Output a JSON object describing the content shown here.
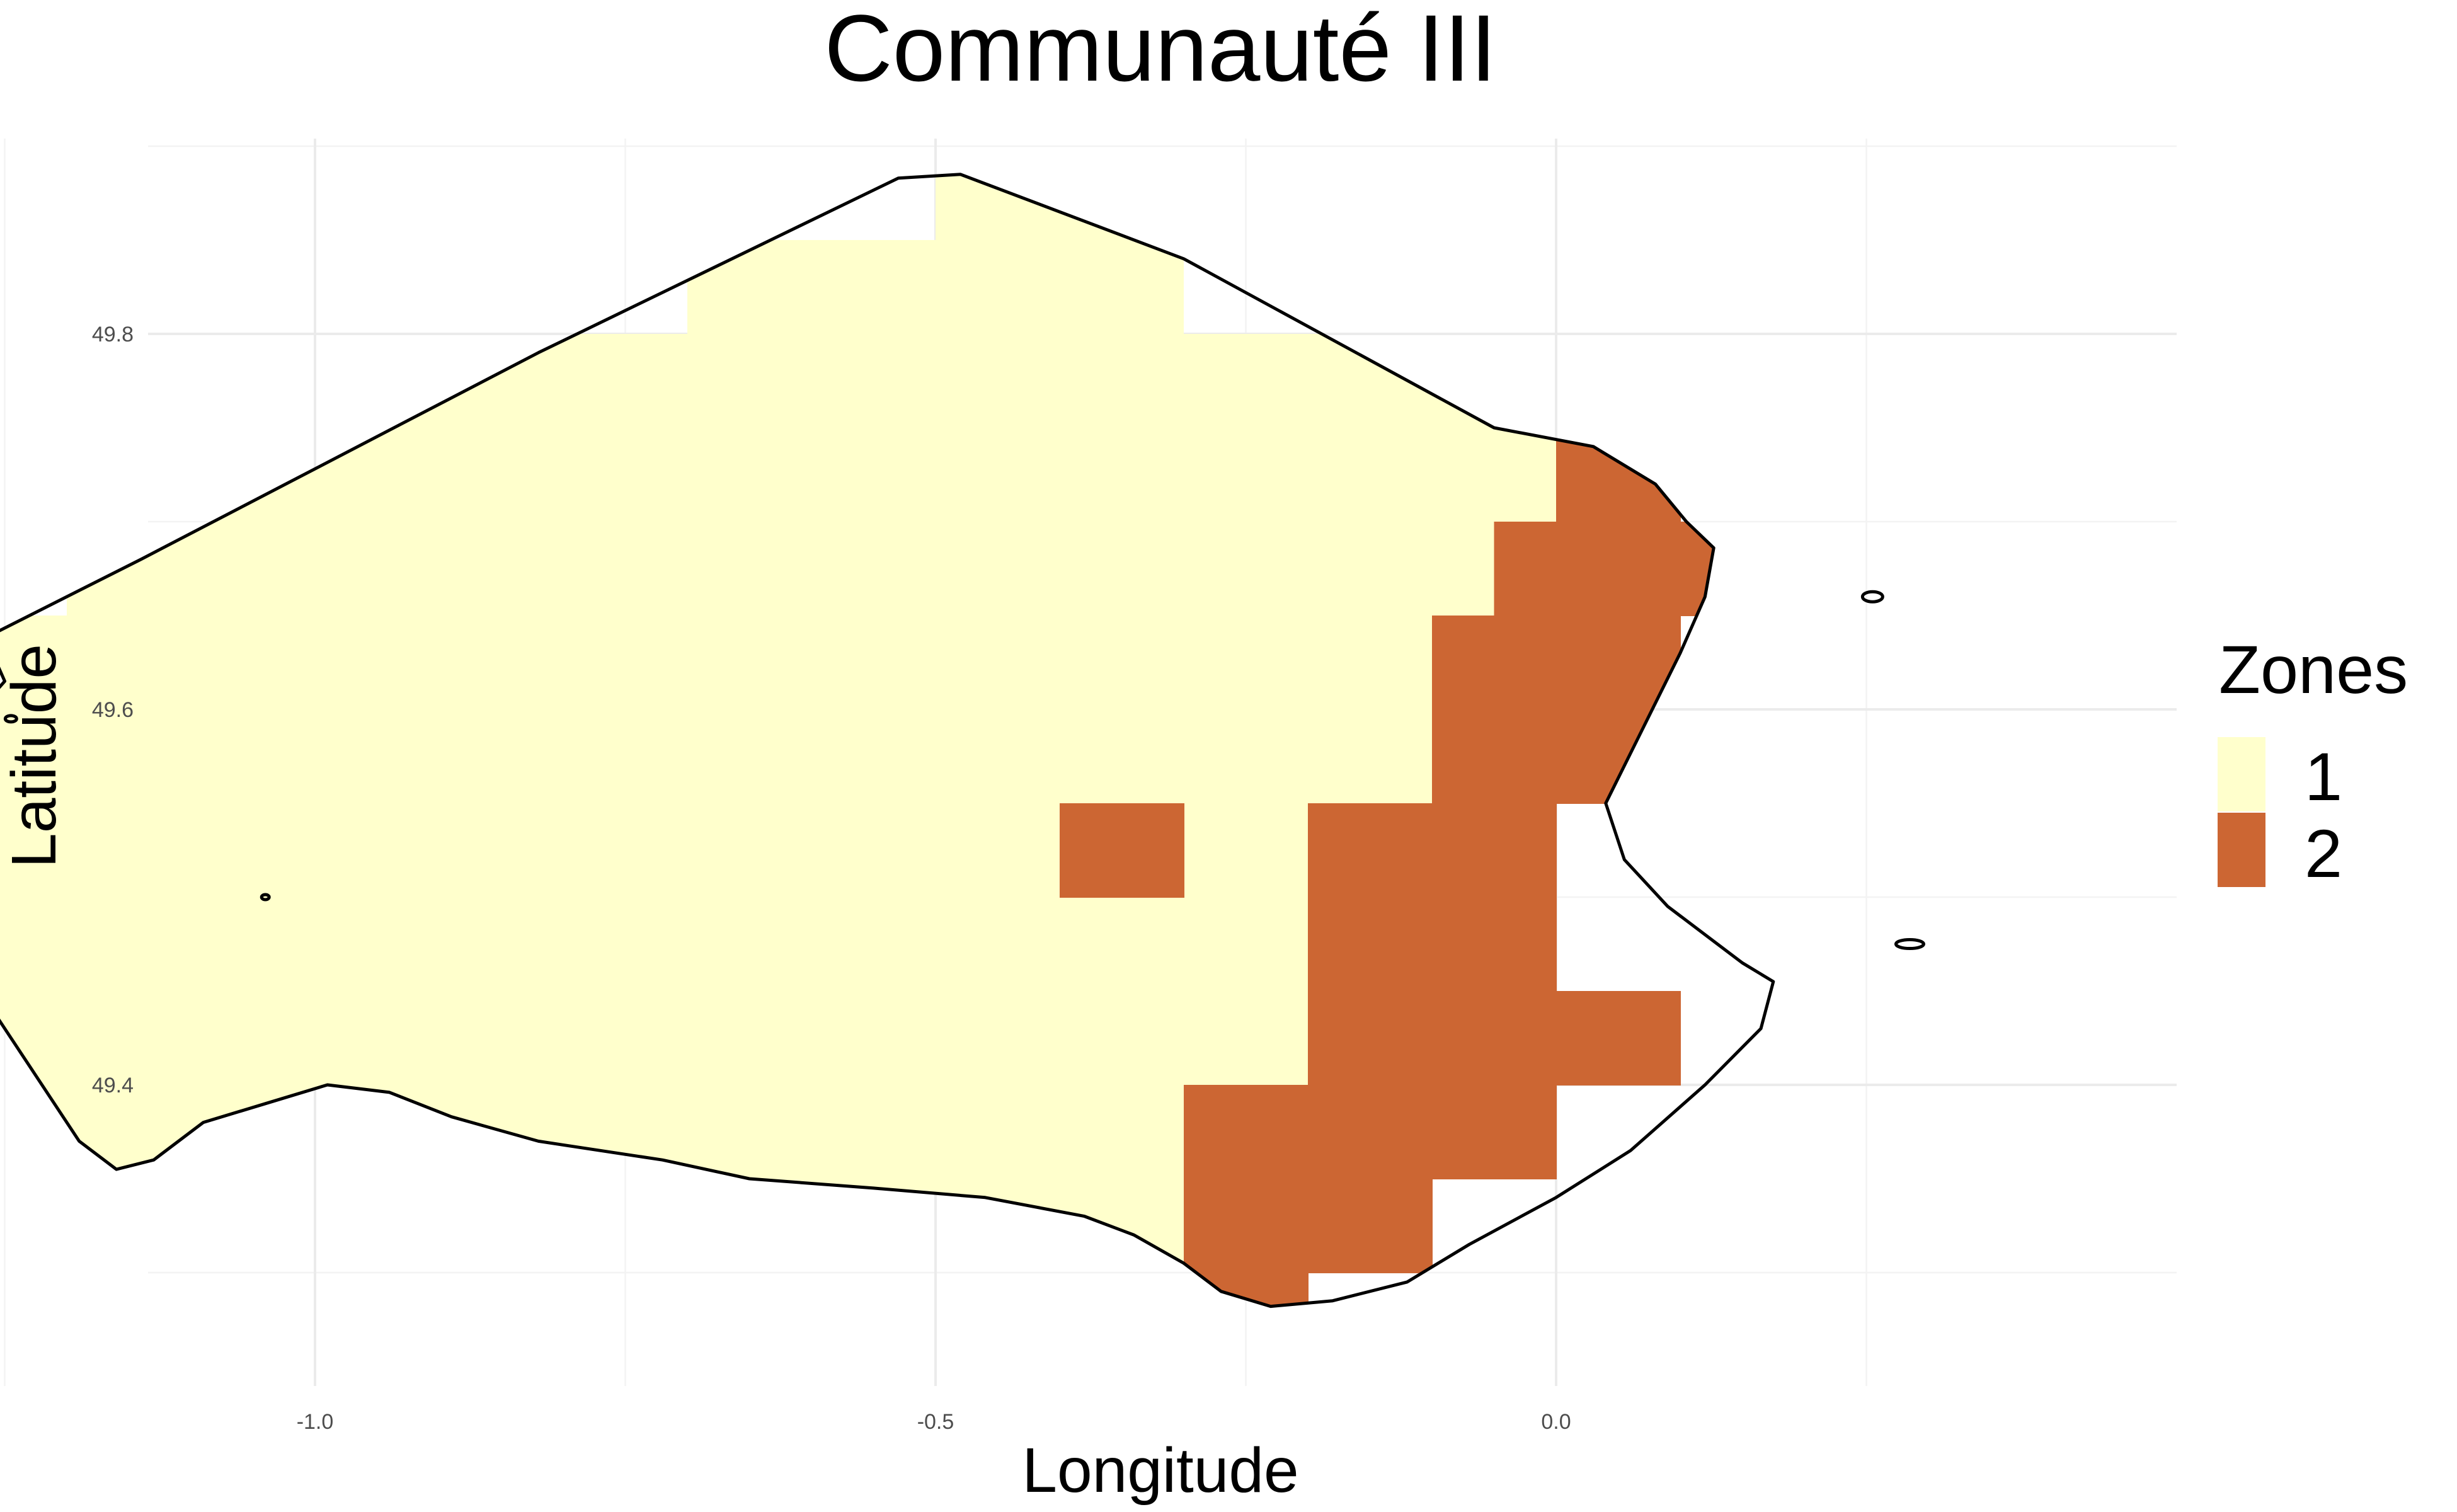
{
  "chart_data": {
    "type": "heatmap",
    "title": "Communauté III",
    "xlabel": "Longitude",
    "ylabel": "Latitude",
    "xlim": [
      -1.5,
      0.35
    ],
    "ylim": [
      49.25,
      49.9
    ],
    "x_ticks": [
      {
        "value": -1.0,
        "label": "-1.0"
      },
      {
        "value": -0.5,
        "label": "-0.5"
      },
      {
        "value": 0.0,
        "label": "0.0"
      }
    ],
    "x_minor": [
      -1.25,
      -0.75,
      -0.25,
      0.25
    ],
    "y_ticks": [
      {
        "value": 49.4,
        "label": "49.4"
      },
      {
        "value": 49.6,
        "label": "49.6"
      },
      {
        "value": 49.8,
        "label": "49.8"
      }
    ],
    "y_minor": [
      49.3,
      49.5,
      49.7,
      49.9
    ],
    "grid": true,
    "legend": {
      "title": "Zones",
      "position": "right",
      "entries": [
        {
          "label": "1",
          "color": "#ffffcc"
        },
        {
          "label": "2",
          "color": "#cc6633"
        }
      ]
    },
    "cell_size": [
      0.1,
      0.05
    ],
    "zone_1_lat_rows": [
      {
        "lat": 49.875,
        "lon": [
          -0.45,
          -0.35
        ]
      },
      {
        "lat": 49.825,
        "lon": [
          -0.65,
          -0.35
        ]
      },
      {
        "lat": 49.775,
        "lon": [
          -0.95,
          -0.05
        ]
      },
      {
        "lat": 49.725,
        "lon": [
          -1.05,
          0.05
        ]
      },
      {
        "lat": 49.675,
        "lon": [
          -1.15,
          -0.05
        ]
      },
      {
        "lat": 49.625,
        "lon": [
          -1.25,
          -0.05
        ]
      },
      {
        "lat": 49.575,
        "lon": [
          -1.35,
          -0.15
        ]
      },
      {
        "lat": 49.525,
        "lon": [
          -1.35,
          -0.15
        ]
      },
      {
        "lat": 49.475,
        "lon": [
          -1.25,
          -0.15
        ]
      },
      {
        "lat": 49.425,
        "lon": [
          -1.25,
          -0.25
        ]
      },
      {
        "lat": 49.375,
        "lon": [
          -1.25,
          -0.25
        ]
      },
      {
        "lat": 49.325,
        "lon": [
          -1.15,
          -0.25
        ]
      },
      {
        "lat": 49.275,
        "lon": [
          -0.55,
          -0.25
        ]
      }
    ],
    "zone_2_cells": [
      {
        "lon": 0.05,
        "lat": 49.725
      },
      {
        "lon": 0.0,
        "lat": 49.675
      },
      {
        "lon": 0.1,
        "lat": 49.675
      },
      {
        "lon": -0.05,
        "lat": 49.625
      },
      {
        "lon": 0.05,
        "lat": 49.625
      },
      {
        "lon": -0.05,
        "lat": 49.575
      },
      {
        "lon": 0.05,
        "lat": 49.575
      },
      {
        "lon": -0.35,
        "lat": 49.525
      },
      {
        "lon": -0.15,
        "lat": 49.525
      },
      {
        "lon": -0.05,
        "lat": 49.525
      },
      {
        "lon": -0.15,
        "lat": 49.475
      },
      {
        "lon": -0.05,
        "lat": 49.475
      },
      {
        "lon": -0.15,
        "lat": 49.425
      },
      {
        "lon": -0.05,
        "lat": 49.425
      },
      {
        "lon": 0.05,
        "lat": 49.425
      },
      {
        "lon": -0.25,
        "lat": 49.375
      },
      {
        "lon": -0.15,
        "lat": 49.375
      },
      {
        "lon": -0.05,
        "lat": 49.375
      },
      {
        "lon": -0.25,
        "lat": 49.325
      },
      {
        "lon": -0.15,
        "lat": 49.325
      },
      {
        "lon": -0.25,
        "lat": 49.275
      }
    ]
  }
}
